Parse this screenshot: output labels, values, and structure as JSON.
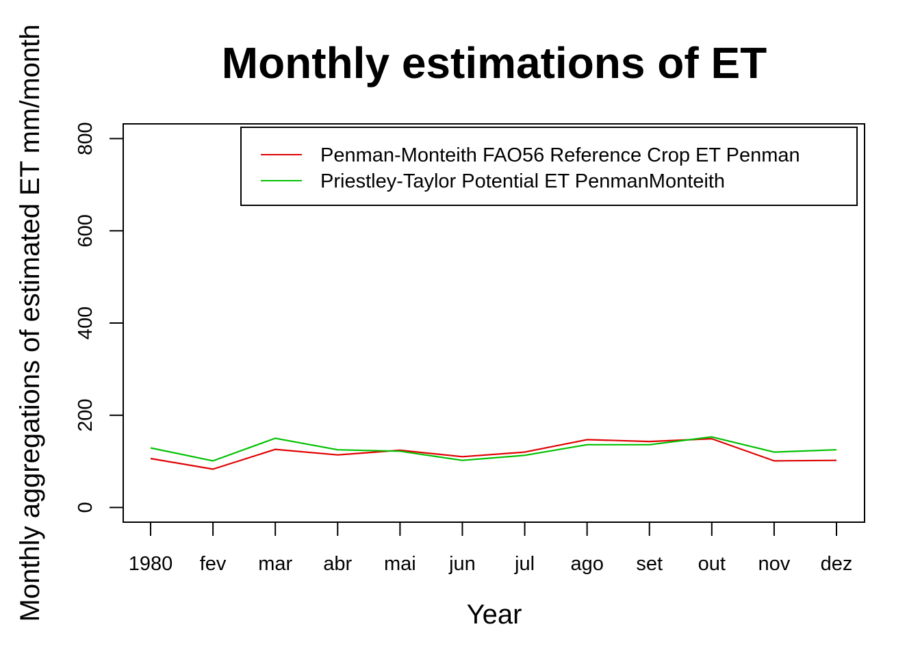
{
  "chart_data": {
    "type": "line",
    "title": "Monthly estimations of ET",
    "xlabel": "Year",
    "ylabel": "Monthly aggregations of estimated ET mm/month",
    "categories": [
      "1980",
      "fev",
      "mar",
      "abr",
      "mai",
      "jun",
      "jul",
      "ago",
      "set",
      "out",
      "nov",
      "dez"
    ],
    "y_ticks": [
      0,
      200,
      400,
      600,
      800
    ],
    "ylim": [
      -32,
      832
    ],
    "grid": false,
    "legend_position": "top-right",
    "series": [
      {
        "name": "Penman-Monteith FAO56 Reference Crop ET Penman",
        "color": "#DF0000",
        "values": [
          106,
          83,
          126,
          114,
          124,
          110,
          120,
          147,
          143,
          149,
          101,
          102
        ]
      },
      {
        "name": "Priestley-Taylor Potential ET PenmanMonteith",
        "color": "#00C000",
        "values": [
          129,
          101,
          150,
          125,
          122,
          102,
          113,
          136,
          136,
          153,
          120,
          125
        ]
      }
    ]
  }
}
